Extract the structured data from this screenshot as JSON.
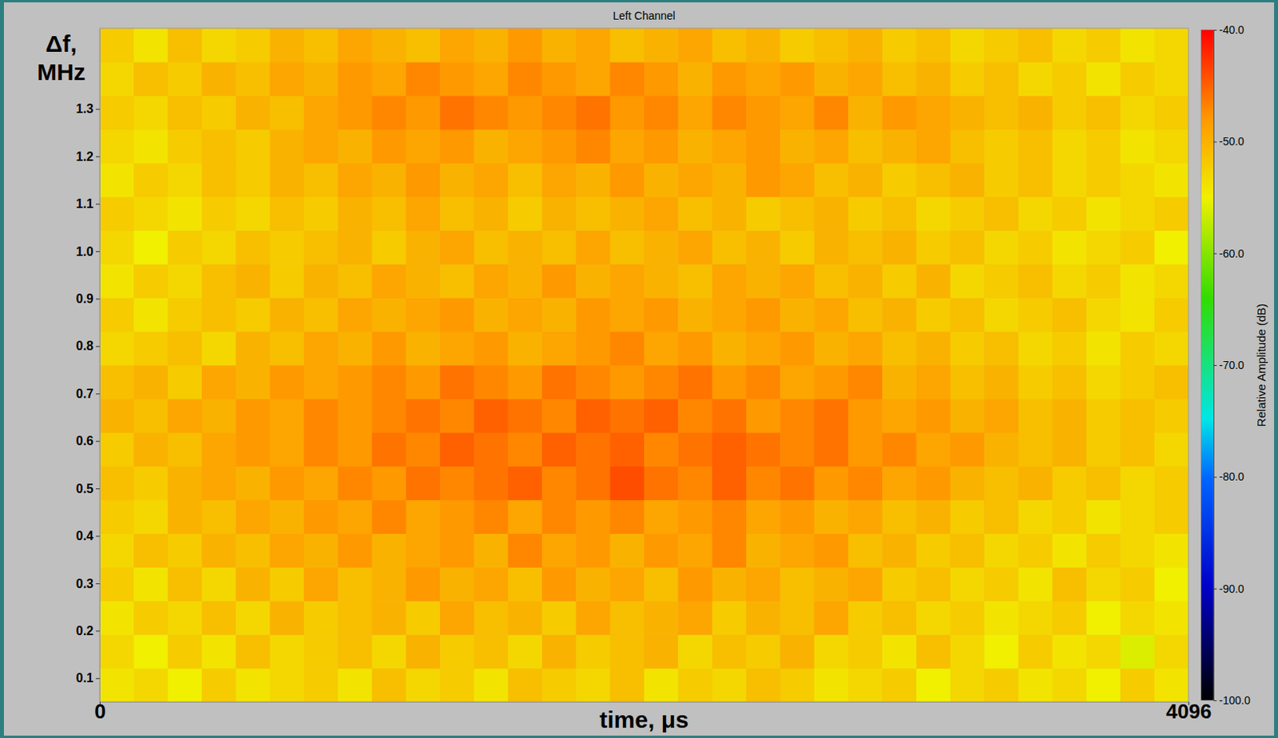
{
  "chart_data": {
    "type": "heatmap",
    "title": "Left Channel",
    "x_label": "time, μs",
    "y_label": "Δf, MHz",
    "xlim": [
      0,
      4096
    ],
    "xticks": [
      0,
      4096
    ],
    "ylim": [
      0.05,
      1.47
    ],
    "yticks": [
      0.1,
      0.2,
      0.3,
      0.4,
      0.5,
      0.6,
      0.7,
      0.8,
      0.9,
      {
        "value": 1,
        "label": "1.0"
      },
      1.1,
      1.2,
      1.3
    ],
    "colorbar": {
      "label": "Relative Amplitude (dB)",
      "range": [
        -100,
        -40
      ],
      "ticks": [
        {
          "value": -40,
          "label": "-40.0"
        },
        {
          "value": -50,
          "label": "-50.0"
        },
        {
          "value": -60,
          "label": "-60.0"
        },
        {
          "value": -70,
          "label": "-70.0"
        },
        {
          "value": -80,
          "label": "-80.0"
        },
        {
          "value": -90,
          "label": "-90.0"
        },
        {
          "value": -100,
          "label": "-100.0"
        }
      ]
    },
    "cells": {
      "x_bins": [
        0,
        128,
        256,
        384,
        512,
        640,
        768,
        896,
        1024,
        1152,
        1280,
        1408,
        1536,
        1664,
        1792,
        1920,
        2048,
        2176,
        2304,
        2432,
        2560,
        2688,
        2816,
        2944,
        3072,
        3200,
        3328,
        3456,
        3584,
        3712,
        3840,
        3968,
        4096
      ],
      "y_bins": [
        0.05,
        0.121,
        0.192,
        0.263,
        0.334,
        0.405,
        0.476,
        0.547,
        0.618,
        0.689,
        0.76,
        0.831,
        0.902,
        0.973,
        1.044,
        1.115,
        1.186,
        1.257,
        1.328,
        1.399,
        1.47
      ],
      "values": [
        [
          -54,
          -53,
          -55,
          -52,
          -54,
          -53,
          -52,
          -54,
          -51,
          -53,
          -52,
          -54,
          -51,
          -52,
          -53,
          -51,
          -54,
          -52,
          -53,
          -51,
          -52,
          -54,
          -53,
          -52,
          -55,
          -53,
          -52,
          -54,
          -53,
          -55,
          -52,
          -54
        ],
        [
          -53,
          -55,
          -52,
          -54,
          -51,
          -53,
          -52,
          -51,
          -53,
          -50,
          -52,
          -51,
          -53,
          -50,
          -52,
          -51,
          -50,
          -53,
          -51,
          -52,
          -50,
          -53,
          -52,
          -54,
          -51,
          -53,
          -55,
          -52,
          -54,
          -53,
          -56,
          -53
        ],
        [
          -54,
          -52,
          -53,
          -51,
          -53,
          -50,
          -52,
          -51,
          -50,
          -52,
          -49,
          -51,
          -50,
          -52,
          -49,
          -51,
          -50,
          -49,
          -52,
          -50,
          -51,
          -49,
          -52,
          -51,
          -53,
          -52,
          -54,
          -53,
          -52,
          -55,
          -53,
          -54
        ],
        [
          -52,
          -54,
          -51,
          -53,
          -50,
          -52,
          -49,
          -51,
          -50,
          -48,
          -50,
          -49,
          -51,
          -48,
          -50,
          -49,
          -51,
          -48,
          -50,
          -49,
          -51,
          -50,
          -49,
          -52,
          -51,
          -53,
          -52,
          -54,
          -51,
          -53,
          -52,
          -55
        ],
        [
          -53,
          -51,
          -52,
          -50,
          -51,
          -49,
          -50,
          -48,
          -50,
          -49,
          -48,
          -50,
          -47,
          -49,
          -48,
          -50,
          -48,
          -49,
          -47,
          -50,
          -49,
          -48,
          -51,
          -50,
          -52,
          -51,
          -53,
          -52,
          -54,
          -52,
          -53,
          -54
        ],
        [
          -52,
          -53,
          -50,
          -51,
          -49,
          -50,
          -48,
          -49,
          -47,
          -49,
          -48,
          -47,
          -49,
          -47,
          -48,
          -47,
          -49,
          -48,
          -47,
          -49,
          -48,
          -50,
          -49,
          -51,
          -50,
          -52,
          -51,
          -53,
          -52,
          -54,
          -53,
          -52
        ],
        [
          -51,
          -52,
          -50,
          -49,
          -50,
          -48,
          -49,
          -47,
          -48,
          -46,
          -47,
          -46,
          -45,
          -47,
          -46,
          -44,
          -46,
          -47,
          -45,
          -47,
          -46,
          -48,
          -47,
          -49,
          -48,
          -50,
          -51,
          -50,
          -52,
          -51,
          -53,
          -52
        ],
        [
          -52,
          -50,
          -51,
          -49,
          -48,
          -49,
          -47,
          -48,
          -46,
          -47,
          -45,
          -46,
          -47,
          -45,
          -46,
          -45,
          -47,
          -46,
          -45,
          -46,
          -47,
          -46,
          -48,
          -47,
          -49,
          -48,
          -50,
          -51,
          -50,
          -52,
          -51,
          -53
        ],
        [
          -50,
          -51,
          -49,
          -50,
          -48,
          -49,
          -47,
          -48,
          -47,
          -46,
          -47,
          -45,
          -46,
          -47,
          -45,
          -46,
          -45,
          -47,
          -46,
          -48,
          -47,
          -46,
          -48,
          -49,
          -48,
          -50,
          -49,
          -51,
          -50,
          -52,
          -51,
          -52
        ],
        [
          -51,
          -50,
          -52,
          -49,
          -50,
          -48,
          -49,
          -48,
          -47,
          -48,
          -46,
          -47,
          -48,
          -46,
          -47,
          -48,
          -47,
          -46,
          -48,
          -47,
          -49,
          -48,
          -47,
          -50,
          -49,
          -51,
          -50,
          -52,
          -51,
          -53,
          -52,
          -51
        ],
        [
          -53,
          -52,
          -51,
          -53,
          -50,
          -51,
          -49,
          -50,
          -48,
          -50,
          -49,
          -48,
          -50,
          -49,
          -48,
          -47,
          -49,
          -48,
          -50,
          -49,
          -48,
          -50,
          -49,
          -51,
          -50,
          -52,
          -51,
          -53,
          -52,
          -54,
          -52,
          -53
        ],
        [
          -52,
          -54,
          -52,
          -51,
          -52,
          -50,
          -51,
          -49,
          -50,
          -49,
          -48,
          -50,
          -49,
          -50,
          -48,
          -49,
          -48,
          -50,
          -49,
          -48,
          -50,
          -49,
          -51,
          -50,
          -52,
          -51,
          -53,
          -52,
          -51,
          -53,
          -54,
          -52
        ],
        [
          -54,
          -52,
          -53,
          -51,
          -50,
          -52,
          -50,
          -51,
          -49,
          -50,
          -51,
          -49,
          -50,
          -48,
          -50,
          -49,
          -50,
          -51,
          -49,
          -50,
          -49,
          -51,
          -50,
          -52,
          -50,
          -53,
          -52,
          -51,
          -53,
          -52,
          -54,
          -53
        ],
        [
          -53,
          -55,
          -52,
          -53,
          -51,
          -52,
          -51,
          -50,
          -52,
          -50,
          -49,
          -51,
          -50,
          -51,
          -49,
          -51,
          -50,
          -49,
          -51,
          -50,
          -52,
          -50,
          -51,
          -50,
          -52,
          -51,
          -53,
          -52,
          -54,
          -53,
          -52,
          -55
        ],
        [
          -52,
          -53,
          -54,
          -52,
          -53,
          -51,
          -52,
          -50,
          -51,
          -49,
          -51,
          -50,
          -52,
          -50,
          -51,
          -50,
          -49,
          -51,
          -50,
          -52,
          -51,
          -50,
          -52,
          -51,
          -53,
          -52,
          -51,
          -53,
          -52,
          -54,
          -53,
          -52
        ],
        [
          -54,
          -52,
          -53,
          -51,
          -52,
          -50,
          -51,
          -49,
          -50,
          -48,
          -50,
          -49,
          -51,
          -49,
          -50,
          -48,
          -50,
          -49,
          -50,
          -48,
          -49,
          -51,
          -50,
          -52,
          -51,
          -50,
          -52,
          -51,
          -53,
          -52,
          -53,
          -54
        ],
        [
          -53,
          -54,
          -52,
          -51,
          -52,
          -50,
          -49,
          -50,
          -48,
          -49,
          -48,
          -50,
          -49,
          -48,
          -47,
          -49,
          -48,
          -50,
          -49,
          -48,
          -50,
          -49,
          -51,
          -50,
          -49,
          -51,
          -52,
          -51,
          -53,
          -52,
          -54,
          -53
        ],
        [
          -52,
          -53,
          -51,
          -52,
          -50,
          -51,
          -49,
          -48,
          -47,
          -48,
          -46,
          -47,
          -48,
          -47,
          -46,
          -48,
          -47,
          -49,
          -47,
          -48,
          -49,
          -47,
          -50,
          -48,
          -49,
          -50,
          -51,
          -50,
          -52,
          -51,
          -53,
          -52
        ],
        [
          -53,
          -51,
          -52,
          -50,
          -51,
          -49,
          -50,
          -48,
          -49,
          -47,
          -48,
          -49,
          -47,
          -48,
          -49,
          -47,
          -48,
          -50,
          -48,
          -49,
          -48,
          -50,
          -49,
          -51,
          -50,
          -52,
          -51,
          -53,
          -52,
          -54,
          -52,
          -53
        ],
        [
          -52,
          -54,
          -51,
          -53,
          -52,
          -50,
          -51,
          -49,
          -50,
          -51,
          -49,
          -50,
          -48,
          -50,
          -49,
          -51,
          -50,
          -49,
          -51,
          -50,
          -52,
          -51,
          -50,
          -52,
          -51,
          -53,
          -52,
          -51,
          -53,
          -52,
          -54,
          -53
        ]
      ]
    }
  }
}
